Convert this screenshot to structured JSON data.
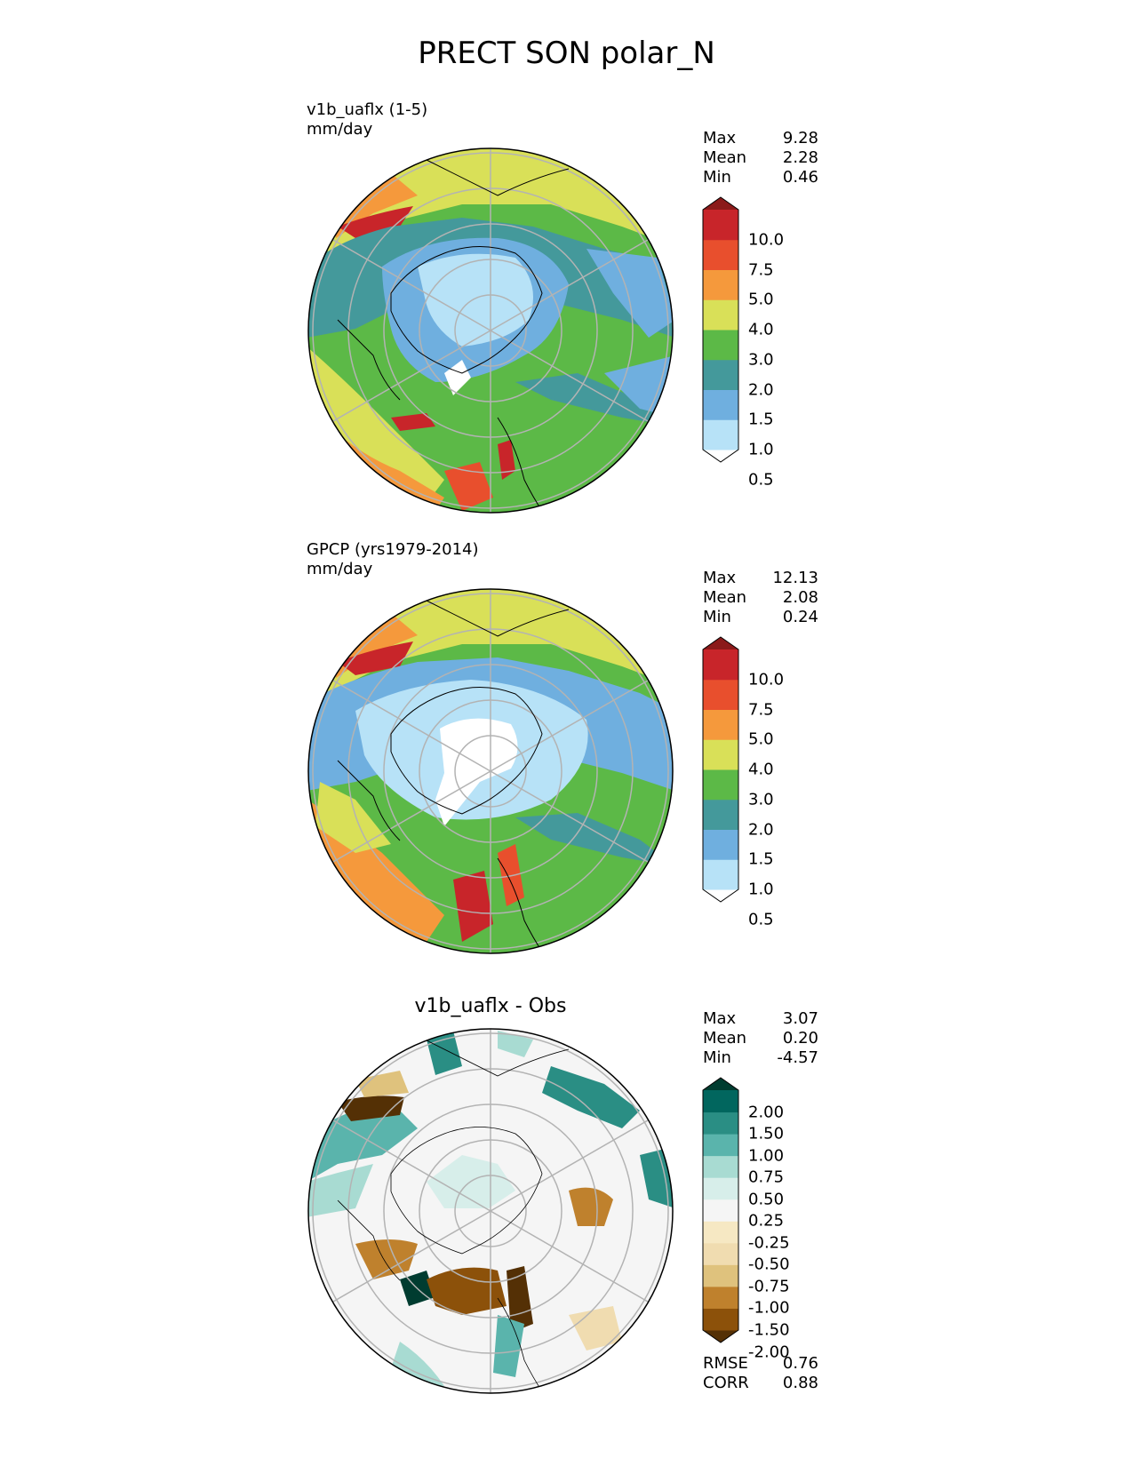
{
  "title": "PRECT SON polar_N",
  "panels": [
    {
      "label_line1": "v1b_uaflx (1-5)",
      "label_line2": "mm/day",
      "stats": [
        {
          "name": "Max",
          "value": "9.28"
        },
        {
          "name": "Mean",
          "value": "2.28"
        },
        {
          "name": "Min",
          "value": "0.46"
        }
      ],
      "colorbar_ticks": [
        "10.0",
        "7.5",
        "5.0",
        "4.0",
        "3.0",
        "2.0",
        "1.5",
        "1.0",
        "0.5"
      ],
      "colorbar_colors": [
        "#ffffff",
        "#b7e2f7",
        "#6fafdf",
        "#44999b",
        "#5cb947",
        "#d9e058",
        "#f5993c",
        "#e84f2d",
        "#c8252a",
        "#8b1a1a"
      ]
    },
    {
      "label_line1": "GPCP (yrs1979-2014)",
      "label_line2": "mm/day",
      "stats": [
        {
          "name": "Max",
          "value": "12.13"
        },
        {
          "name": "Mean",
          "value": "2.08"
        },
        {
          "name": "Min",
          "value": "0.24"
        }
      ],
      "colorbar_ticks": [
        "10.0",
        "7.5",
        "5.0",
        "4.0",
        "3.0",
        "2.0",
        "1.5",
        "1.0",
        "0.5"
      ],
      "colorbar_colors": [
        "#ffffff",
        "#b7e2f7",
        "#6fafdf",
        "#44999b",
        "#5cb947",
        "#d9e058",
        "#f5993c",
        "#e84f2d",
        "#c8252a",
        "#8b1a1a"
      ]
    },
    {
      "title": "v1b_uaflx - Obs",
      "stats": [
        {
          "name": "Max",
          "value": "3.07"
        },
        {
          "name": "Mean",
          "value": "0.20"
        },
        {
          "name": "Min",
          "value": "-4.57"
        }
      ],
      "colorbar_ticks": [
        "2.00",
        "1.50",
        "1.00",
        "0.75",
        "0.50",
        "0.25",
        "-0.25",
        "-0.50",
        "-0.75",
        "-1.00",
        "-1.50",
        "-2.00"
      ],
      "colorbar_colors": [
        "#543005",
        "#8c510a",
        "#bf812d",
        "#dfc27d",
        "#f0dcb0",
        "#f6e8c3",
        "#f5f5f5",
        "#d7eeea",
        "#a8dbd2",
        "#5ab4ac",
        "#2a8e84",
        "#01665e",
        "#003c30"
      ],
      "metrics": [
        {
          "name": "RMSE",
          "value": "0.76"
        },
        {
          "name": "CORR",
          "value": "0.88"
        }
      ]
    }
  ]
}
